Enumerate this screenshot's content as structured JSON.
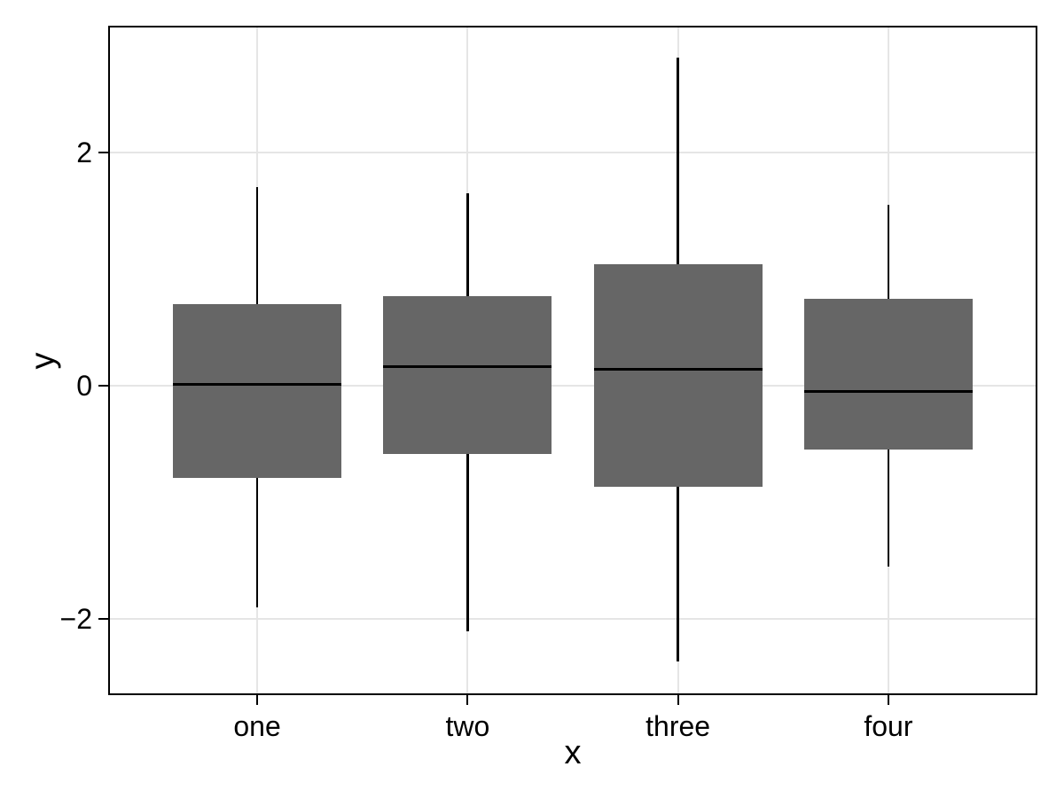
{
  "chart_data": {
    "type": "box",
    "title": "",
    "xlabel": "x",
    "ylabel": "y",
    "categories": [
      "one",
      "two",
      "three",
      "four"
    ],
    "series": [
      {
        "category": "one",
        "whisker_low": -1.9,
        "q1": -0.79,
        "median": 0.01,
        "q3": 0.7,
        "whisker_high": 1.7
      },
      {
        "category": "two",
        "whisker_low": -2.11,
        "q1": -0.59,
        "median": 0.16,
        "q3": 0.77,
        "whisker_high": 1.65
      },
      {
        "category": "three",
        "whisker_low": -2.37,
        "q1": -0.87,
        "median": 0.14,
        "q3": 1.04,
        "whisker_high": 2.81
      },
      {
        "category": "four",
        "whisker_low": -1.55,
        "q1": -0.55,
        "median": -0.05,
        "q3": 0.74,
        "whisker_high": 1.55
      }
    ],
    "x_positions": [
      1,
      2,
      3,
      4
    ],
    "xlim": [
      0.3,
      4.7
    ],
    "ylim": [
      -2.64,
      3.07
    ],
    "yticks": [
      -2,
      0,
      2
    ],
    "ytick_labels": [
      "−2",
      "0",
      "2"
    ],
    "box_width": 0.8,
    "grid": true,
    "legend": "none",
    "outliers": [],
    "colors": {
      "box_fill": "#666666",
      "line": "#000000",
      "grid": "#e5e5e5",
      "background": "#ffffff"
    }
  }
}
